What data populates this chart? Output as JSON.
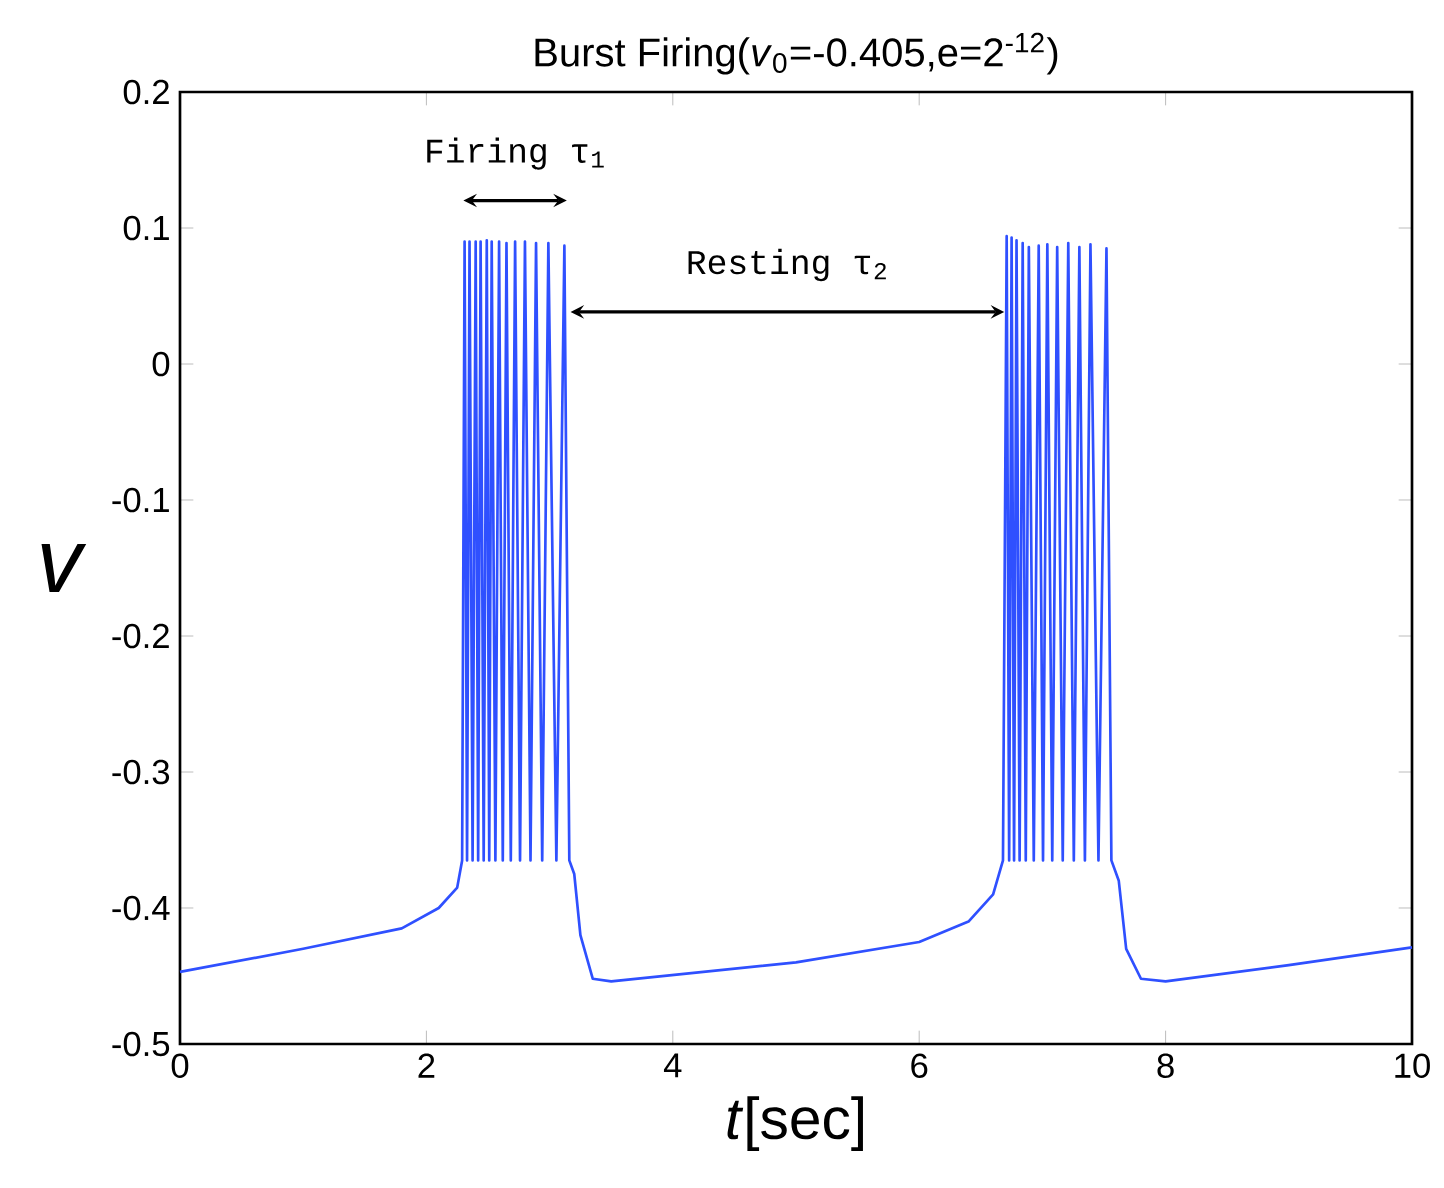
{
  "chart_data": {
    "type": "line",
    "title": "Burst Firing(*v*$_{0}$=-0.405,e=2$^{-12}$)",
    "xlabel": "*t*[sec]",
    "ylabel": "v",
    "xlim": [
      0,
      10
    ],
    "ylim": [
      -0.5,
      0.2
    ],
    "xticks": [
      0,
      2,
      4,
      6,
      8,
      10
    ],
    "yticks": [
      -0.5,
      -0.4,
      -0.3,
      -0.2,
      -0.1,
      0,
      0.1,
      0.2
    ],
    "grid": false,
    "marker": "none",
    "line_style": "solid",
    "series": [
      {
        "color": "#2f50ff",
        "x": [
          0,
          1,
          1.8,
          2.1,
          2.25,
          2.29,
          2.31,
          2.33,
          2.35,
          2.375,
          2.4,
          2.42,
          2.44,
          2.465,
          2.49,
          2.51,
          2.53,
          2.56,
          2.59,
          2.62,
          2.65,
          2.685,
          2.72,
          2.76,
          2.8,
          2.845,
          2.89,
          2.94,
          2.99,
          3.055,
          3.12,
          3.16,
          3.2,
          3.25,
          3.35,
          3.5,
          5,
          6,
          6.4,
          6.6,
          6.68,
          6.71,
          6.73,
          6.75,
          6.77,
          6.79,
          6.815,
          6.84,
          6.865,
          6.89,
          6.93,
          6.97,
          7.005,
          7.04,
          7.08,
          7.12,
          7.165,
          7.21,
          7.255,
          7.3,
          7.345,
          7.39,
          7.455,
          7.52,
          7.56,
          7.62,
          7.68,
          7.8,
          8,
          9,
          10
        ],
        "values": [
          -0.447,
          -0.43,
          -0.415,
          -0.4,
          -0.385,
          -0.365,
          0.09,
          -0.365,
          0.09,
          -0.365,
          0.09,
          -0.365,
          0.09,
          -0.365,
          0.091,
          -0.365,
          0.09,
          -0.365,
          0.09,
          -0.365,
          0.089,
          -0.365,
          0.09,
          -0.365,
          0.09,
          -0.365,
          0.089,
          -0.365,
          0.089,
          -0.365,
          0.087,
          -0.365,
          -0.375,
          -0.42,
          -0.452,
          -0.454,
          -0.44,
          -0.425,
          -0.41,
          -0.39,
          -0.365,
          0.094,
          -0.365,
          0.093,
          -0.365,
          0.091,
          -0.365,
          0.089,
          -0.365,
          0.086,
          -0.365,
          0.087,
          -0.365,
          0.088,
          -0.365,
          0.086,
          -0.365,
          0.089,
          -0.365,
          0.086,
          -0.365,
          0.088,
          -0.365,
          0.085,
          -0.365,
          -0.38,
          -0.43,
          -0.452,
          -0.454,
          -0.442,
          -0.429
        ]
      }
    ],
    "annotations": [
      "Firing τ$_{1}$",
      "Resting τ$_{2}$"
    ]
  }
}
